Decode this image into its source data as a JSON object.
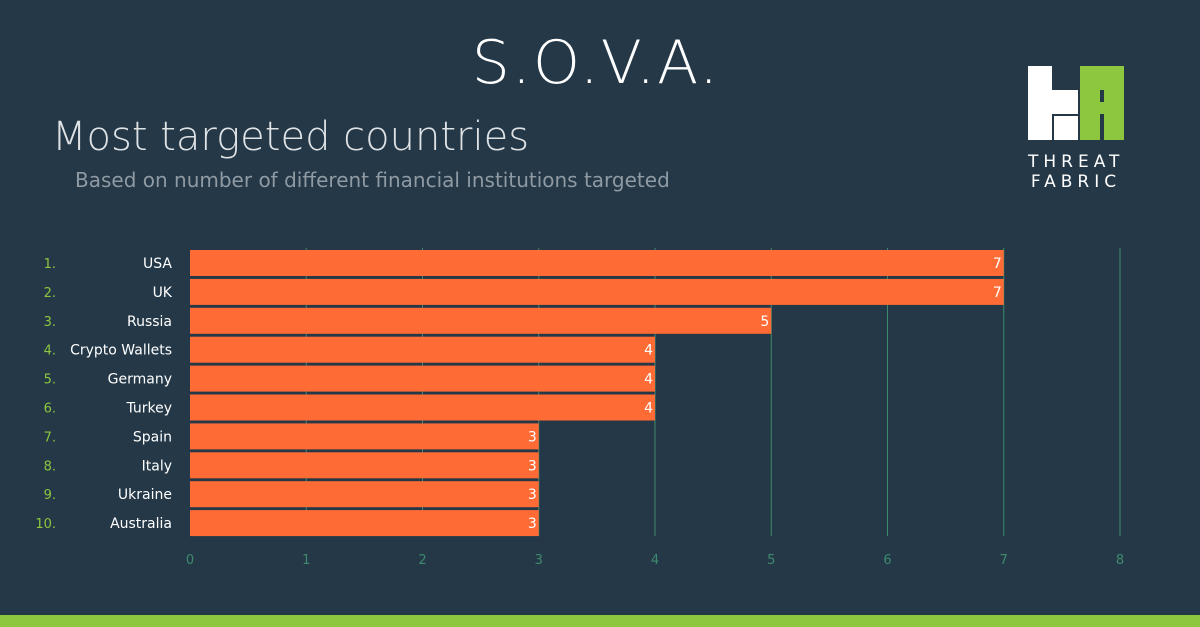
{
  "header": {
    "title": "S.O.V.A.",
    "subtitle": "Most targeted countries",
    "caption": "Based on number of different financial institutions targeted"
  },
  "logo": {
    "line1": "THREAT",
    "line2": "FABRIC",
    "colors": {
      "accent": "#8dc63f",
      "white": "#ffffff"
    }
  },
  "colors": {
    "background": "#243847",
    "bar": "#ff6b35",
    "rank": "#8dc63f",
    "grid": "#3e8a6e",
    "tick": "#3e8a6e",
    "bottom_bar": "#8dc63f"
  },
  "chart_data": {
    "type": "bar",
    "orientation": "horizontal",
    "ranks": [
      "1.",
      "2.",
      "3.",
      "4.",
      "5.",
      "6.",
      "7.",
      "8.",
      "9.",
      "10."
    ],
    "categories": [
      "USA",
      "UK",
      "Russia",
      "Crypto Wallets",
      "Germany",
      "Turkey",
      "Spain",
      "Italy",
      "Ukraine",
      "Australia"
    ],
    "values": [
      7,
      7,
      5,
      4,
      4,
      4,
      3,
      3,
      3,
      3
    ],
    "xticks": [
      0,
      1,
      2,
      3,
      4,
      5,
      6,
      7,
      8
    ],
    "xlim": [
      0,
      8
    ],
    "grid": true
  }
}
